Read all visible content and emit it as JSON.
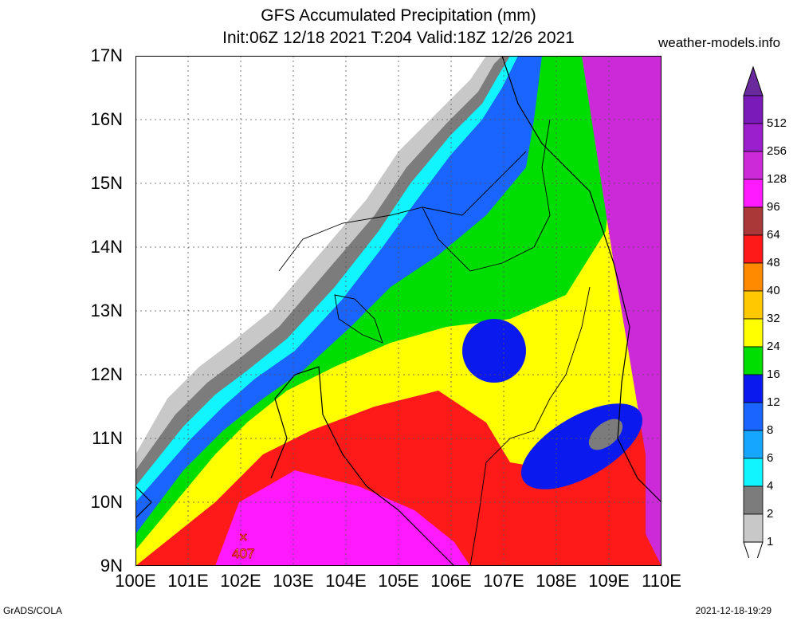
{
  "title_line1": "GFS Accumulated Precipitation (mm)",
  "title_line2": "Init:06Z 12/18 2021 T:204 Valid:18Z 12/26 2021",
  "site": "weather-models.info",
  "footer_left": "GrADS/COLA",
  "footer_right": "2021-12-18-19:29",
  "lat_labels": [
    "17N",
    "16N",
    "15N",
    "14N",
    "13N",
    "12N",
    "11N",
    "10N",
    "9N"
  ],
  "lon_labels": [
    "100E",
    "101E",
    "102E",
    "103E",
    "104E",
    "105E",
    "106E",
    "107E",
    "108E",
    "109E",
    "110E"
  ],
  "legend": {
    "levels": [
      {
        "label": "512",
        "color": "#7a1ab8"
      },
      {
        "label": "256",
        "color": "#9b1fcc"
      },
      {
        "label": "128",
        "color": "#cc2ad9"
      },
      {
        "label": "96",
        "color": "#ff1aff"
      },
      {
        "label": "64",
        "color": "#aa3838"
      },
      {
        "label": "48",
        "color": "#ff1a1a"
      },
      {
        "label": "40",
        "color": "#ff8a00"
      },
      {
        "label": "32",
        "color": "#ffc800"
      },
      {
        "label": "24",
        "color": "#ffff00"
      },
      {
        "label": "16",
        "color": "#00dd00"
      },
      {
        "label": "12",
        "color": "#0a1aee"
      },
      {
        "label": "8",
        "color": "#1a64ff"
      },
      {
        "label": "6",
        "color": "#15a6ff"
      },
      {
        "label": "4",
        "color": "#10f5ff"
      },
      {
        "label": "2",
        "color": "#7c7c7c"
      },
      {
        "label": "1",
        "color": "#c8c8c8"
      }
    ],
    "overflow_color": "#6a2a9e"
  },
  "max_marker": {
    "label": "407",
    "lon": 102.05,
    "lat": 9.45
  }
}
